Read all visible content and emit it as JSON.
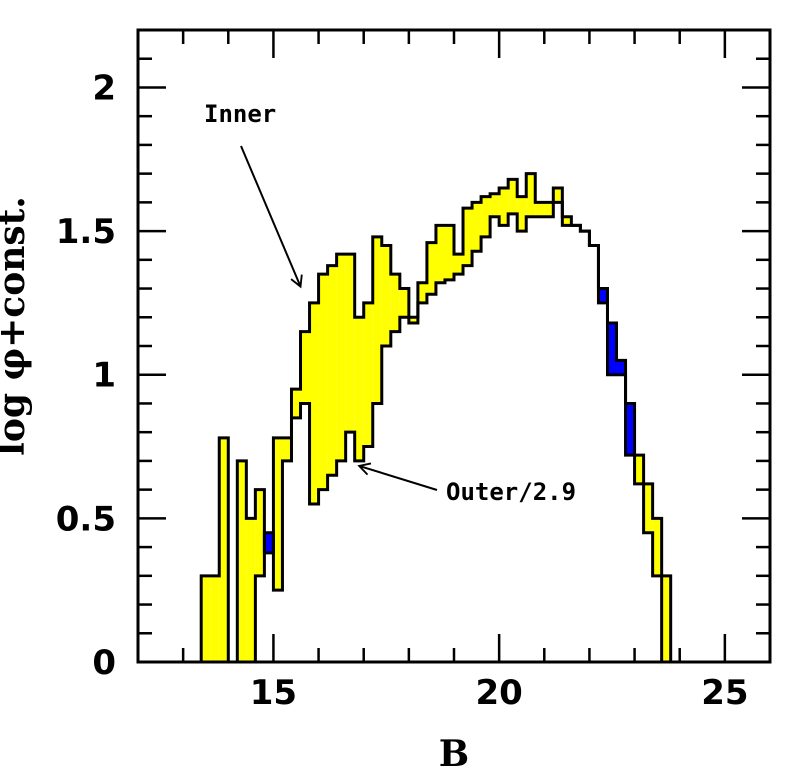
{
  "chart_data": {
    "type": "area",
    "xlabel": "B",
    "ylabel": "log φ+const.",
    "xlim": [
      12,
      26
    ],
    "ylim": [
      0,
      2.2
    ],
    "x_ticks": [
      {
        "value": 15,
        "label": "15"
      },
      {
        "value": 20,
        "label": "20"
      },
      {
        "value": 25,
        "label": "25"
      }
    ],
    "y_ticks": [
      {
        "value": 0,
        "label": "0"
      },
      {
        "value": 0.5,
        "label": "0.5"
      },
      {
        "value": 1,
        "label": "1"
      },
      {
        "value": 1.5,
        "label": "1.5"
      },
      {
        "value": 2,
        "label": "2"
      }
    ],
    "x_minor_step": 1,
    "y_minor_step": 0.1,
    "bin_edges": [
      13.4,
      13.6,
      13.8,
      14.0,
      14.2,
      14.4,
      14.6,
      14.8,
      15.0,
      15.2,
      15.4,
      15.6,
      15.8,
      16.0,
      16.2,
      16.4,
      16.6,
      16.8,
      17.0,
      17.2,
      17.4,
      17.6,
      17.8,
      18.0,
      18.2,
      18.4,
      18.6,
      18.8,
      19.0,
      19.2,
      19.4,
      19.6,
      19.8,
      20.0,
      20.2,
      20.4,
      20.6,
      20.8,
      21.0,
      21.2,
      21.4,
      21.6,
      21.8,
      22.0,
      22.2,
      22.4,
      22.6,
      22.8,
      23.0,
      23.2,
      23.4,
      23.6,
      23.8
    ],
    "series": [
      {
        "values": [
          0.3,
          0.3,
          0.78,
          0.0,
          0.7,
          0.5,
          0.6,
          0.38,
          0.78,
          0.78,
          0.95,
          1.15,
          1.25,
          1.35,
          1.38,
          1.42,
          1.42,
          1.2,
          1.25,
          1.48,
          1.45,
          1.35,
          1.3,
          1.2,
          1.32,
          1.46,
          1.52,
          1.52,
          1.42,
          1.58,
          1.6,
          1.62,
          1.63,
          1.65,
          1.68,
          1.62,
          1.7,
          1.6,
          1.6,
          1.65,
          1.55,
          1.52,
          1.5,
          1.45,
          1.25,
          1.0,
          1.0,
          0.72,
          0.72,
          0.62,
          0.5,
          0.3
        ]
      },
      {
        "values": [
          0.0,
          0.0,
          0.0,
          0.0,
          0.0,
          0.0,
          0.3,
          0.45,
          0.25,
          0.7,
          0.85,
          0.9,
          0.55,
          0.6,
          0.65,
          0.7,
          0.8,
          0.7,
          0.75,
          0.9,
          1.1,
          1.15,
          1.2,
          1.18,
          1.25,
          1.28,
          1.32,
          1.33,
          1.35,
          1.38,
          1.43,
          1.48,
          1.55,
          1.52,
          1.56,
          1.5,
          1.55,
          1.55,
          1.55,
          1.6,
          1.52,
          1.52,
          1.5,
          1.45,
          1.3,
          1.18,
          1.05,
          0.9,
          0.62,
          0.45,
          0.3,
          0.0
        ]
      }
    ],
    "colors": {
      "fill_first_higher": "#ffff00",
      "fill_second_higher": "#0000ff",
      "outline": "#000000"
    },
    "annotations": [
      {
        "text": "Inner",
        "pointer": "arrow",
        "target_x": 15.6,
        "target_y": 1.3
      },
      {
        "text": "Outer/2.9",
        "pointer": "arrow",
        "target_x": 16.9,
        "target_y": 0.7
      }
    ]
  }
}
